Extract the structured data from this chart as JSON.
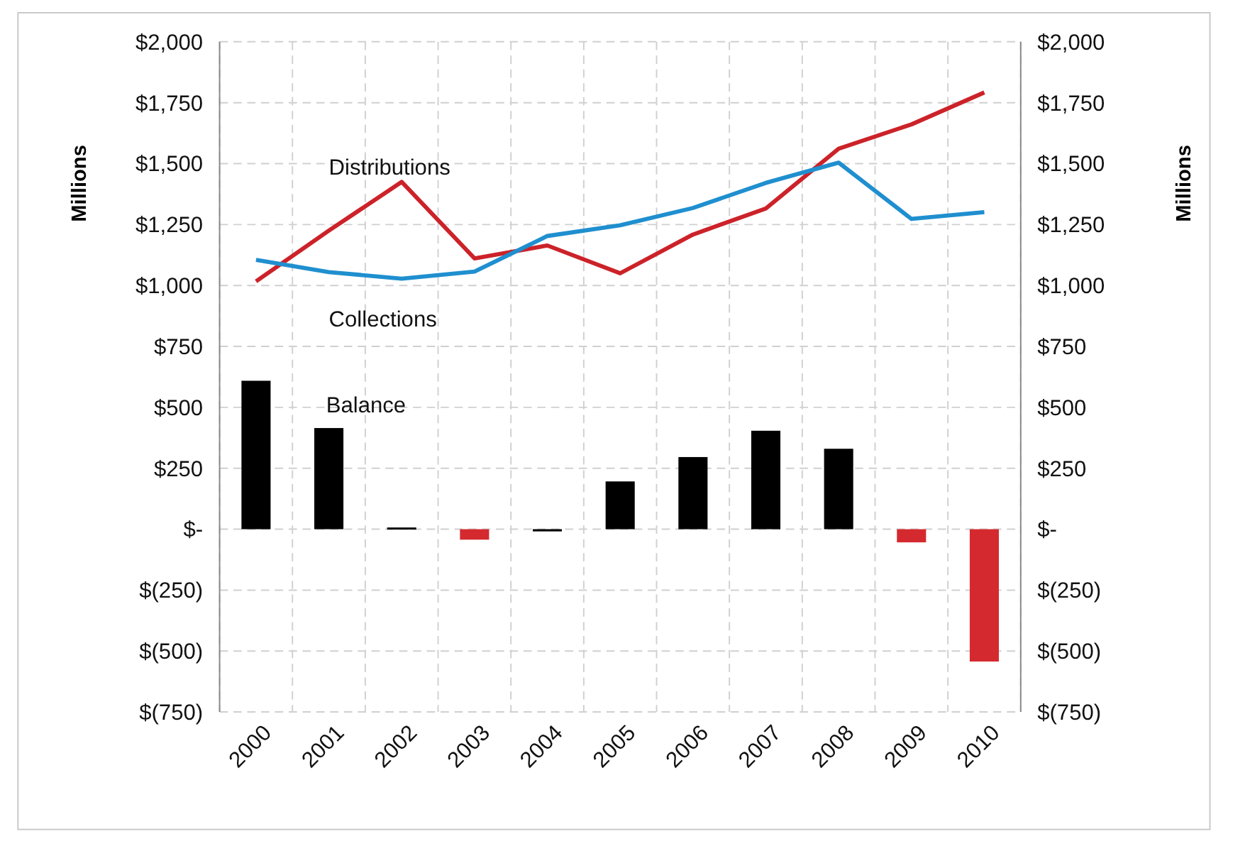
{
  "chart_data": {
    "type": "bar",
    "ylabel": "Millions",
    "y2label": "Millions",
    "categories": [
      "2000",
      "2001",
      "2002",
      "2003",
      "2004",
      "2005",
      "2006",
      "2007",
      "2008",
      "2009",
      "2010"
    ],
    "series": [
      {
        "name": "Balance",
        "colors": [
          "#000000",
          "#000000",
          "#000000",
          "#d42a2f",
          "#000000",
          "#000000",
          "#000000",
          "#000000",
          "#000000",
          "#d42a2f",
          "#d42a2f"
        ],
        "values": [
          609,
          415,
          7,
          -43,
          -9,
          196,
          296,
          404,
          330,
          -54,
          -543
        ]
      },
      {
        "name": "Distributions",
        "type": "line",
        "color": "#cc2229",
        "values": [
          1017,
          1225,
          1425,
          1111,
          1164,
          1050,
          1209,
          1316,
          1561,
          1661,
          1792
        ]
      },
      {
        "name": "Collections",
        "type": "line",
        "color": "#1f8fcf",
        "values": [
          1105,
          1055,
          1028,
          1057,
          1203,
          1247,
          1318,
          1421,
          1504,
          1273,
          1301
        ]
      }
    ],
    "ylim": [
      -750,
      2000
    ],
    "yticks": [
      {
        "value": -750,
        "label": "$(750)"
      },
      {
        "value": -500,
        "label": "$(500)"
      },
      {
        "value": -250,
        "label": "$(250)"
      },
      {
        "value": 0,
        "label": "$-"
      },
      {
        "value": 250,
        "label": "$250"
      },
      {
        "value": 500,
        "label": "$500"
      },
      {
        "value": 750,
        "label": "$750"
      },
      {
        "value": 1000,
        "label": "$1,000"
      },
      {
        "value": 1250,
        "label": "$1,250"
      },
      {
        "value": 1500,
        "label": "$1,500"
      },
      {
        "value": 1750,
        "label": "$1,750"
      },
      {
        "value": 2000,
        "label": "$2,000"
      }
    ],
    "y2lim": [
      -750,
      2000
    ],
    "y2ticks": [
      {
        "value": -750,
        "label": "$(750)"
      },
      {
        "value": -500,
        "label": "$(500)"
      },
      {
        "value": -250,
        "label": "$(250)"
      },
      {
        "value": 0,
        "label": "$-"
      },
      {
        "value": 250,
        "label": "$250"
      },
      {
        "value": 500,
        "label": "$500"
      },
      {
        "value": 750,
        "label": "$750"
      },
      {
        "value": 1000,
        "label": "$1,000"
      },
      {
        "value": 1250,
        "label": "$1,250"
      },
      {
        "value": 1500,
        "label": "$1,500"
      },
      {
        "value": 1750,
        "label": "$1,750"
      },
      {
        "value": 2000,
        "label": "$2,000"
      }
    ],
    "grid": true
  }
}
